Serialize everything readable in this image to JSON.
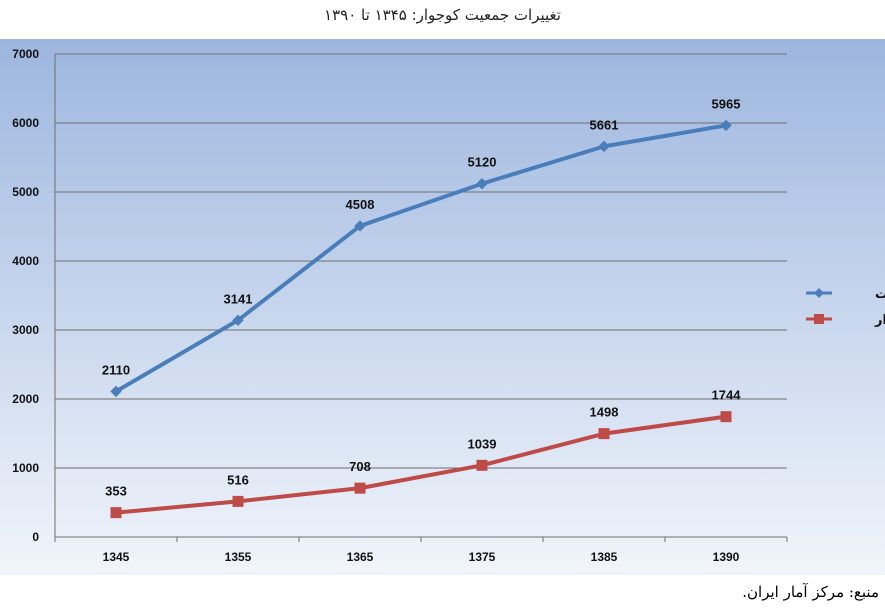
{
  "chart_data": {
    "type": "line",
    "title": "تغییرات جمعیت کوجوار: ۱۳۴۵ تا ۱۳۹۰",
    "categories": [
      "1345",
      "1355",
      "1365",
      "1375",
      "1385",
      "1390"
    ],
    "ylim": [
      0,
      7000
    ],
    "yticks": [
      "0",
      "1000",
      "2000",
      "3000",
      "4000",
      "5000",
      "6000",
      "7000"
    ],
    "grid": true,
    "legend_position": "right",
    "series": [
      {
        "name": "جمعیت",
        "color": "#4a7ebb",
        "marker": "diamond",
        "values": [
          2110,
          3141,
          4508,
          5120,
          5661,
          5965
        ]
      },
      {
        "name": "خانوار",
        "color": "#be4b48",
        "marker": "square",
        "values": [
          353,
          516,
          708,
          1039,
          1498,
          1744
        ]
      }
    ]
  },
  "source": "منبع: مرکز آمار ایران."
}
